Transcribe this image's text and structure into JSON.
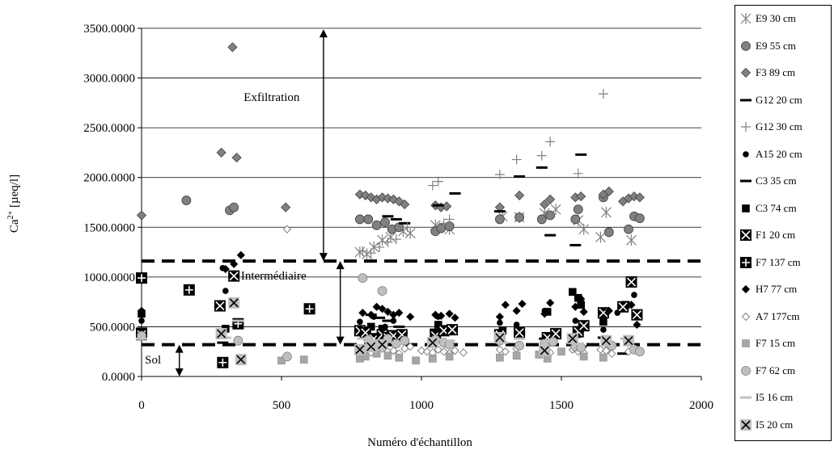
{
  "chart_data": {
    "type": "scatter",
    "title": "",
    "xlabel": "Numéro d'échantillon",
    "ylabel_main": "Ca",
    "ylabel_sup": "2+",
    "ylabel_unit": " [µeq/l]",
    "xlim": [
      0,
      2000
    ],
    "ylim": [
      0,
      3500
    ],
    "x_ticks": [
      0,
      500,
      1000,
      1500,
      2000
    ],
    "y_ticks": [
      0,
      500,
      1000,
      1500,
      2000,
      2500,
      3000,
      3500
    ],
    "x_tick_labels": [
      "0",
      "500",
      "1000",
      "1500",
      "2000"
    ],
    "y_tick_labels": [
      "0.0000",
      "500.0000",
      "1000.0000",
      "1500.0000",
      "2000.0000",
      "2500.0000",
      "3000.0000",
      "3500.0000"
    ],
    "grid": "horizontal",
    "legend_position": "right",
    "thresholds": [
      1160,
      320
    ],
    "annotations": [
      {
        "text": "Exfiltration",
        "x": 365,
        "y": 2770,
        "arrow_x": 650,
        "arrow_y": [
          3490,
          1160
        ]
      },
      {
        "text": "Intermédiaire",
        "x": 355,
        "y": 975,
        "arrow_x": 710,
        "arrow_y": [
          1160,
          320
        ]
      },
      {
        "text": "Sol",
        "x": 12,
        "y": 130,
        "arrow_x": 135,
        "arrow_y": [
          320,
          0
        ]
      }
    ],
    "series": [
      {
        "name": "E9 30 cm",
        "marker": "asterisk",
        "color": "#808080",
        "x": [
          780,
          805,
          830,
          860,
          890,
          935,
          960,
          1050,
          1100,
          1290,
          1350,
          1440,
          1480,
          1560,
          1580,
          1640,
          1660,
          1750
        ],
        "y": [
          1250,
          1230,
          1300,
          1370,
          1400,
          1460,
          1440,
          1520,
          1480,
          1610,
          1600,
          1640,
          1680,
          1570,
          1480,
          1400,
          1650,
          1370
        ]
      },
      {
        "name": "E9 55 cm",
        "marker": "circle",
        "color": "#808080",
        "x": [
          160,
          315,
          330,
          780,
          810,
          840,
          870,
          895,
          920,
          1050,
          1070,
          1100,
          1280,
          1350,
          1430,
          1460,
          1550,
          1560,
          1650,
          1670,
          1740,
          1760,
          1780
        ],
        "y": [
          1770,
          1670,
          1700,
          1580,
          1580,
          1520,
          1550,
          1480,
          1500,
          1460,
          1490,
          1510,
          1580,
          1600,
          1580,
          1620,
          1580,
          1680,
          1800,
          1450,
          1480,
          1610,
          1590
        ]
      },
      {
        "name": "F3 89 cm",
        "marker": "diamond",
        "color": "#808080",
        "x": [
          0,
          285,
          325,
          340,
          515,
          780,
          800,
          820,
          840,
          860,
          880,
          900,
          920,
          940,
          1050,
          1070,
          1090,
          1280,
          1350,
          1440,
          1460,
          1550,
          1570,
          1650,
          1670,
          1720,
          1740,
          1760,
          1780
        ],
        "y": [
          1620,
          2250,
          3310,
          2200,
          1700,
          1830,
          1820,
          1800,
          1780,
          1800,
          1790,
          1780,
          1760,
          1730,
          1720,
          1700,
          1710,
          1700,
          1820,
          1730,
          1780,
          1800,
          1810,
          1830,
          1860,
          1760,
          1790,
          1810,
          1800
        ]
      },
      {
        "name": "G12 20 cm",
        "marker": "dash",
        "color": "#000000",
        "x": [
          880,
          910,
          940,
          1060,
          1120,
          1280,
          1350,
          1430,
          1460,
          1550,
          1570
        ],
        "y": [
          1610,
          1580,
          1540,
          1720,
          1840,
          1660,
          2010,
          2100,
          1420,
          1320,
          2230
        ]
      },
      {
        "name": "G12 30 cm",
        "marker": "plus",
        "color": "#808080",
        "x": [
          790,
          820,
          850,
          880,
          910,
          950,
          1040,
          1060,
          1080,
          1100,
          1280,
          1340,
          1430,
          1460,
          1560,
          1650
        ],
        "y": [
          1260,
          1240,
          1300,
          1350,
          1380,
          1500,
          1920,
          1960,
          1540,
          1580,
          2030,
          2180,
          2220,
          2360,
          2040,
          2840
        ]
      },
      {
        "name": "A15 20 cm",
        "marker": "dot",
        "color": "#000000",
        "x": [
          0,
          290,
          300,
          780,
          830,
          870,
          900,
          940,
          1060,
          1100,
          1280,
          1340,
          1440,
          1550,
          1570,
          1650,
          1700,
          1760
        ],
        "y": [
          560,
          1090,
          860,
          550,
          600,
          500,
          560,
          440,
          600,
          480,
          540,
          520,
          660,
          560,
          750,
          470,
          640,
          820
        ]
      },
      {
        "name": "C3 35 cm",
        "marker": "dash",
        "color": "#000000",
        "x": [
          0,
          290,
          820,
          850,
          880,
          920,
          1050,
          1100,
          1280,
          1350,
          1440,
          1550,
          1570,
          1650,
          1720
        ],
        "y": [
          480,
          340,
          620,
          590,
          560,
          500,
          470,
          480,
          460,
          430,
          380,
          400,
          300,
          390,
          230
        ]
      },
      {
        "name": "C3 74 cm",
        "marker": "square",
        "color": "#000000",
        "x": [
          0,
          300,
          780,
          820,
          860,
          900,
          1060,
          1290,
          1450,
          1540,
          1560,
          1570,
          1650,
          1730
        ],
        "y": [
          630,
          480,
          450,
          500,
          480,
          400,
          520,
          460,
          650,
          850,
          790,
          720,
          550,
          720
        ]
      },
      {
        "name": "F1 20 cm",
        "marker": "boxed-x",
        "color": "#000000",
        "x": [
          0,
          280,
          330,
          780,
          800,
          830,
          860,
          880,
          900,
          930,
          1050,
          1080,
          1110,
          1280,
          1350,
          1450,
          1480,
          1560,
          1580,
          1650,
          1720,
          1750,
          1770
        ],
        "y": [
          420,
          710,
          1010,
          460,
          440,
          380,
          420,
          390,
          410,
          420,
          410,
          460,
          470,
          420,
          440,
          390,
          430,
          450,
          510,
          640,
          700,
          950,
          620
        ]
      },
      {
        "name": "F7 137 cm",
        "marker": "boxed-plus",
        "color": "#000000",
        "x": [
          0,
          170,
          290,
          345,
          600
        ],
        "y": [
          990,
          870,
          140,
          530,
          680
        ]
      },
      {
        "name": "H7 77 cm",
        "marker": "diamond",
        "color": "#000000",
        "x": [
          0,
          300,
          330,
          355,
          790,
          820,
          840,
          860,
          880,
          900,
          920,
          960,
          1050,
          1070,
          1100,
          1120,
          1280,
          1300,
          1340,
          1360,
          1440,
          1460,
          1550,
          1570,
          1580,
          1650,
          1670,
          1750,
          1770
        ],
        "y": [
          660,
          1080,
          1130,
          1220,
          640,
          620,
          700,
          680,
          650,
          620,
          640,
          600,
          620,
          610,
          630,
          590,
          600,
          720,
          660,
          730,
          630,
          740,
          700,
          780,
          650,
          590,
          660,
          720,
          520
        ]
      },
      {
        "name": "A7 177cm",
        "marker": "diamond-open",
        "color": "#808080",
        "x": [
          520,
          800,
          820,
          840,
          860,
          880,
          900,
          920,
          940,
          960,
          1000,
          1020,
          1040,
          1060,
          1080,
          1100,
          1120,
          1150,
          1280,
          1300,
          1340,
          1440,
          1460,
          1540,
          1560,
          1580,
          1640,
          1660,
          1680,
          1740,
          1760
        ],
        "y": [
          1480,
          260,
          240,
          230,
          280,
          250,
          260,
          230,
          280,
          300,
          260,
          250,
          240,
          270,
          250,
          230,
          260,
          240,
          270,
          250,
          280,
          260,
          240,
          270,
          250,
          240,
          270,
          260,
          230,
          250,
          270
        ]
      },
      {
        "name": "F7 15 cm",
        "marker": "square",
        "color": "#a6a6a6",
        "x": [
          500,
          580,
          780,
          800,
          840,
          880,
          920,
          980,
          1040,
          1100,
          1280,
          1340,
          1420,
          1450,
          1500,
          1580,
          1650
        ],
        "y": [
          160,
          170,
          180,
          200,
          230,
          210,
          190,
          160,
          180,
          200,
          190,
          210,
          220,
          180,
          250,
          200,
          190
        ]
      },
      {
        "name": "F7 62 cm",
        "marker": "circle",
        "color": "#bfbfbf",
        "x": [
          0,
          345,
          520,
          790,
          810,
          830,
          860,
          880,
          910,
          940,
          1050,
          1080,
          1100,
          1280,
          1350,
          1440,
          1470,
          1550,
          1570,
          1660,
          1680,
          1760,
          1780
        ],
        "y": [
          410,
          360,
          200,
          990,
          370,
          320,
          860,
          380,
          330,
          360,
          370,
          340,
          320,
          360,
          310,
          330,
          350,
          300,
          290,
          340,
          310,
          270,
          250
        ]
      },
      {
        "name": "I5 16 cm",
        "marker": "dash",
        "color": "#bfbfbf",
        "x": [
          0,
          300,
          345,
          790,
          830,
          870,
          910,
          1060,
          1100,
          1290,
          1350,
          1450,
          1560,
          1660,
          1730
        ],
        "y": [
          380,
          390,
          560,
          380,
          360,
          350,
          340,
          370,
          360,
          340,
          380,
          360,
          330,
          390,
          380
        ]
      },
      {
        "name": "I5 20 cm",
        "marker": "boxed-x-gray",
        "color": "#a6a6a6",
        "x": [
          285,
          330,
          355,
          780,
          820,
          860,
          1040,
          1280,
          1440,
          1540,
          1660,
          1740
        ],
        "y": [
          430,
          740,
          170,
          270,
          300,
          320,
          340,
          390,
          260,
          380,
          360,
          360
        ]
      }
    ]
  }
}
